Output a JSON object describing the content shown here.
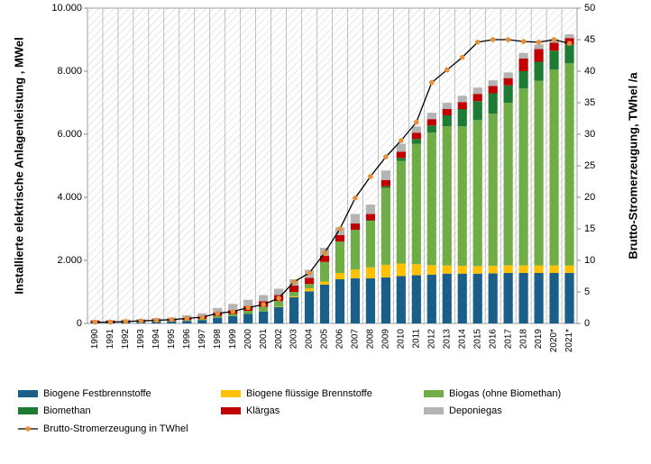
{
  "chart_data": {
    "type": "stacked-bar-line",
    "y_axis_label": "Installierte elektrische Anlagenleistung , MWel",
    "y2_axis_label": "Brutto-Stromerzeugung, TWhel /a",
    "categories": [
      "1990",
      "1991",
      "1992",
      "1993",
      "1994",
      "1995",
      "1996",
      "1997",
      "1998",
      "1999",
      "2000",
      "2001",
      "2002",
      "2003",
      "2004",
      "2005",
      "2006",
      "2007",
      "2008",
      "2009",
      "2010",
      "2011",
      "2012",
      "2013",
      "2014",
      "2015",
      "2016",
      "2017",
      "2018",
      "2019",
      "2020*",
      "2021*"
    ],
    "ylim": [
      0,
      10000
    ],
    "yticks": [
      0,
      {
        "value": 2000,
        "label": "2.000"
      },
      {
        "value": 4000,
        "label": "4.000"
      },
      {
        "value": 6000,
        "label": "6.000"
      },
      {
        "value": 8000,
        "label": "8.000"
      },
      {
        "value": 10000,
        "label": "10.000"
      }
    ],
    "y2lim": [
      0,
      50
    ],
    "y2ticks": [
      0,
      5,
      10,
      15,
      20,
      25,
      30,
      35,
      40,
      45,
      50
    ],
    "series": [
      {
        "name": "Biogene Festbrennstoffe",
        "color": "#1a5e8a",
        "values": [
          40,
          40,
          45,
          50,
          60,
          70,
          80,
          100,
          180,
          230,
          300,
          380,
          520,
          830,
          1020,
          1230,
          1400,
          1430,
          1430,
          1460,
          1500,
          1530,
          1550,
          1580,
          1580,
          1580,
          1590,
          1600,
          1600,
          1600,
          1600,
          1600
        ]
      },
      {
        "name": "Biogene flüssige Brennstoffe",
        "color": "#ffc000",
        "values": [
          0,
          0,
          0,
          0,
          0,
          0,
          0,
          0,
          0,
          0,
          0,
          0,
          10,
          30,
          90,
          100,
          200,
          280,
          350,
          400,
          400,
          350,
          300,
          260,
          250,
          240,
          240,
          240,
          240,
          240,
          240,
          240
        ]
      },
      {
        "name": "Biogas (ohne Biomethan)",
        "color": "#70ad47",
        "values": [
          0,
          0,
          0,
          10,
          20,
          20,
          30,
          40,
          60,
          70,
          100,
          150,
          180,
          140,
          140,
          620,
          1000,
          1260,
          1470,
          2440,
          3250,
          3820,
          4200,
          4410,
          4420,
          4630,
          4820,
          5160,
          5610,
          5860,
          6210,
          6410
        ]
      },
      {
        "name": "Biomethan",
        "color": "#1e7b34",
        "values": [
          0,
          0,
          0,
          0,
          0,
          0,
          0,
          0,
          0,
          0,
          0,
          0,
          0,
          0,
          0,
          0,
          0,
          0,
          20,
          50,
          100,
          150,
          230,
          350,
          550,
          600,
          650,
          550,
          550,
          600,
          600,
          600
        ]
      },
      {
        "name": "Klärgas",
        "color": "#c00000",
        "values": [
          50,
          50,
          50,
          50,
          50,
          50,
          50,
          80,
          100,
          120,
          150,
          170,
          190,
          200,
          200,
          200,
          200,
          200,
          200,
          200,
          200,
          200,
          200,
          200,
          220,
          230,
          230,
          230,
          400,
          400,
          250,
          200
        ]
      },
      {
        "name": "Deponiegas",
        "color": "#b4b4b4",
        "values": [
          20,
          20,
          30,
          30,
          40,
          50,
          100,
          100,
          150,
          200,
          200,
          200,
          200,
          200,
          250,
          250,
          250,
          300,
          300,
          300,
          250,
          200,
          200,
          200,
          200,
          200,
          180,
          180,
          180,
          150,
          120,
          120
        ]
      },
      {
        "name": "Brutto-Stromerzeugung in TWhel",
        "color": "#e69138",
        "axis": "y2",
        "values": [
          0.2,
          0.2,
          0.3,
          0.4,
          0.5,
          0.6,
          0.8,
          1.0,
          1.6,
          1.9,
          2.5,
          3.0,
          4.0,
          6.6,
          8.0,
          11.2,
          15.0,
          19.9,
          23.3,
          26.4,
          29.0,
          31.9,
          38.2,
          40.2,
          42.2,
          44.6,
          45.0,
          45.0,
          44.7,
          44.6,
          45.0,
          44.4
        ]
      }
    ]
  }
}
